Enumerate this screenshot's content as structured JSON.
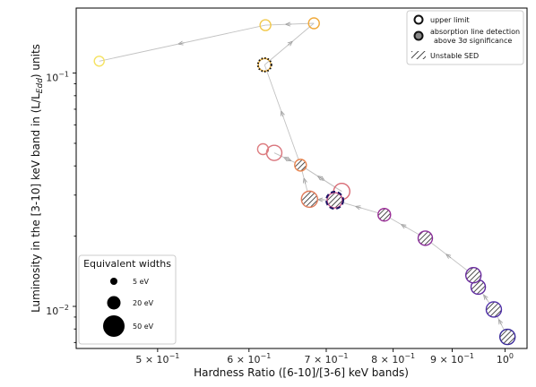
{
  "chart_data": {
    "type": "scatter",
    "xlabel": "Hardness Ratio ([6-10]/[3-6] keV bands)",
    "ylabel_parts": [
      "Luminosity in the [3-10] keV band in (L/L",
      "Edd",
      ") units"
    ],
    "xscale": "log",
    "yscale": "log",
    "xlim": [
      0.425,
      1.045
    ],
    "ylim": [
      0.0066,
      0.19
    ],
    "xtick_labels": [
      {
        "value": 0.5,
        "mant": "5",
        "exp": "−1"
      },
      {
        "value": 0.6,
        "mant": "6",
        "exp": "−1"
      },
      {
        "value": 0.7,
        "mant": "7",
        "exp": "−1"
      },
      {
        "value": 0.8,
        "mant": "8",
        "exp": "−1"
      },
      {
        "value": 0.9,
        "mant": "9",
        "exp": "−1"
      },
      {
        "value": 1.0,
        "mant": "10",
        "exp": "0"
      }
    ],
    "ytick_labels": [
      {
        "value": 0.1,
        "mant": "10",
        "exp": "−1"
      },
      {
        "value": 0.01,
        "mant": "10",
        "exp": "−2"
      }
    ],
    "points": [
      {
        "x": 1.005,
        "y": 0.0074,
        "color": "#3a2a9a",
        "hatch": true,
        "size": 8.5
      },
      {
        "x": 0.978,
        "y": 0.0097,
        "color": "#4f2fa8",
        "hatch": true,
        "size": 8.5
      },
      {
        "x": 0.948,
        "y": 0.0121,
        "color": "#5e2aa0",
        "hatch": true,
        "size": 8
      },
      {
        "x": 0.939,
        "y": 0.0136,
        "color": "#6a2a9e",
        "hatch": true,
        "size": 8.5
      },
      {
        "x": 0.853,
        "y": 0.0196,
        "color": "#8a2d99",
        "hatch": true,
        "size": 8
      },
      {
        "x": 0.786,
        "y": 0.0247,
        "color": "#9a2f97",
        "hatch": true,
        "size": 7
      },
      {
        "x": 0.722,
        "y": 0.0311,
        "color": "#d86a74",
        "hatch": false,
        "size": 9
      },
      {
        "x": 0.712,
        "y": 0.0285,
        "color": "#c9538a",
        "hatch": true,
        "size": 8.5
      },
      {
        "x": 0.712,
        "y": 0.0285,
        "color": "#1b1464",
        "hatch": false,
        "size": 9.5,
        "dashed": true
      },
      {
        "x": 0.677,
        "y": 0.0288,
        "color": "#e07b5a",
        "hatch": true,
        "size": 9
      },
      {
        "x": 0.665,
        "y": 0.0403,
        "color": "#e8844e",
        "hatch": true,
        "size": 6.5
      },
      {
        "x": 0.631,
        "y": 0.0455,
        "color": "#d9757d",
        "hatch": false,
        "size": 8.5
      },
      {
        "x": 0.617,
        "y": 0.0472,
        "color": "#dd7d80",
        "hatch": false,
        "size": 6
      },
      {
        "x": 0.619,
        "y": 0.1085,
        "color": "#f4b43a",
        "hatch": false,
        "size": 7
      },
      {
        "x": 0.619,
        "y": 0.1085,
        "color": "#111111",
        "hatch": false,
        "size": 7.5,
        "dotted": true
      },
      {
        "x": 0.62,
        "y": 0.1605,
        "color": "#f2c94c",
        "hatch": false,
        "size": 6
      },
      {
        "x": 0.683,
        "y": 0.1635,
        "color": "#f0a93a",
        "hatch": false,
        "size": 6
      },
      {
        "x": 0.445,
        "y": 0.1125,
        "color": "#f5e261",
        "hatch": false,
        "size": 5.5
      }
    ],
    "path": [
      [
        1.005,
        0.0074
      ],
      [
        0.978,
        0.0097
      ],
      [
        0.948,
        0.0121
      ],
      [
        0.939,
        0.0136
      ],
      [
        0.853,
        0.0196
      ],
      [
        0.786,
        0.0247
      ],
      [
        0.712,
        0.0285
      ],
      [
        0.677,
        0.0288
      ],
      [
        0.665,
        0.0403
      ],
      [
        0.631,
        0.0455
      ],
      [
        0.665,
        0.0403
      ],
      [
        0.722,
        0.0311
      ],
      [
        0.665,
        0.0403
      ],
      [
        0.619,
        0.1085
      ],
      [
        0.683,
        0.1635
      ],
      [
        0.62,
        0.1605
      ],
      [
        0.445,
        0.1125
      ]
    ],
    "legend": [
      {
        "label": "upper limit",
        "marker": "ring"
      },
      {
        "label_lines": [
          "absorption line detection",
          "above 3σ significance"
        ],
        "marker": "filled-ring"
      },
      {
        "label": "Unstable SED",
        "marker": "hatch"
      }
    ],
    "legend_placement": "top-right",
    "ew_legend": {
      "title": "Equivalent widths",
      "placement": "bottom-left",
      "items": [
        {
          "label": "5 eV",
          "ew": 5
        },
        {
          "label": "20 eV",
          "ew": 20
        },
        {
          "label": "50 eV",
          "ew": 50
        }
      ]
    }
  }
}
